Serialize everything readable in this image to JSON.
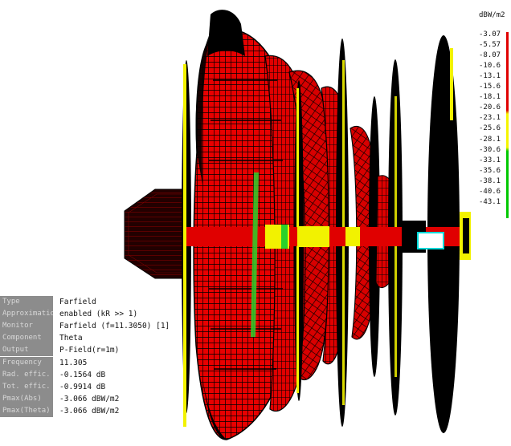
{
  "colorbar": {
    "unit": "dBW/m2",
    "ticks": [
      "-3.07",
      "-5.57",
      "-8.07",
      "-10.6",
      "-13.1",
      "-15.6",
      "-18.1",
      "-20.6",
      "-23.1",
      "-25.6",
      "-28.1",
      "-30.6",
      "-33.1",
      "-35.6",
      "-38.1",
      "-40.6",
      "-43.1"
    ],
    "colors": {
      "high": "#e00000",
      "mid": "#f5f500",
      "low": "#00c800"
    }
  },
  "properties": [
    {
      "key": "Type",
      "value": "Farfield"
    },
    {
      "key": "Approximation",
      "value": "enabled (kR >> 1)"
    },
    {
      "key": "Monitor",
      "value": "Farfield (f=11.3050) [1]"
    },
    {
      "key": "Component",
      "value": "Theta"
    },
    {
      "key": "Output",
      "value": "P-Field(r=1m)"
    },
    {
      "key": "Frequency",
      "value": "11.305"
    },
    {
      "key": "Rad. effic.",
      "value": "-0.1564 dB"
    },
    {
      "key": "Tot. effic.",
      "value": "-0.9914 dB"
    },
    {
      "key": "Pmax(Abs)",
      "value": "-3.066 dBW/m2"
    },
    {
      "key": "Pmax(Theta)",
      "value": "-3.066 dBW/m2"
    }
  ],
  "pattern_colors": {
    "lobe": "#e80000",
    "mesh": "#000000",
    "rim": "#f2f200",
    "accent": "#2ad22a",
    "feed": "#ffffff",
    "feed_glow": "#00d8d8"
  }
}
